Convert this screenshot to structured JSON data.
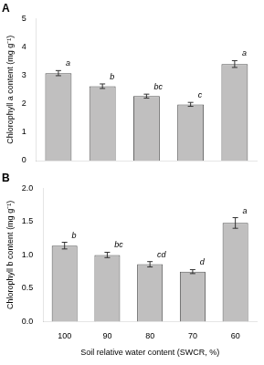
{
  "chart_data": [
    {
      "type": "bar",
      "title": "A",
      "categories": [
        null,
        null,
        null,
        null,
        null
      ],
      "values": [
        3.08,
        2.62,
        2.27,
        1.98,
        3.4
      ],
      "errors": [
        0.09,
        0.08,
        0.07,
        0.07,
        0.12
      ],
      "annotations": [
        "a",
        "b",
        "bc",
        "c",
        "a"
      ],
      "ylabel": "Chlorophyll a content (mg g⁻¹)",
      "ylim": [
        0,
        5
      ],
      "yticks": [
        0,
        1,
        2,
        3,
        4,
        5
      ],
      "color": "#c0bfbf",
      "grid": false,
      "tick_labels": "y"
    },
    {
      "type": "bar",
      "title": "B",
      "categories": [
        "100",
        "90",
        "80",
        "70",
        "60"
      ],
      "values": [
        1.14,
        1.0,
        0.86,
        0.75,
        1.48
      ],
      "errors": [
        0.05,
        0.04,
        0.04,
        0.03,
        0.08
      ],
      "annotations": [
        "b",
        "bc",
        "cd",
        "d",
        "a"
      ],
      "ylabel": "Chlorophyll b content (mg g⁻¹)",
      "xlabel": "Soil relative water content (SWCR, %)",
      "ylim": [
        0.0,
        2.0
      ],
      "yticks": [
        {
          "value": 0,
          "label": "0.0"
        },
        0.5,
        {
          "value": 1,
          "label": "1.0"
        },
        1.5,
        {
          "value": 2,
          "label": "2.0"
        }
      ],
      "color": "#c0bfbf",
      "grid": false
    }
  ]
}
